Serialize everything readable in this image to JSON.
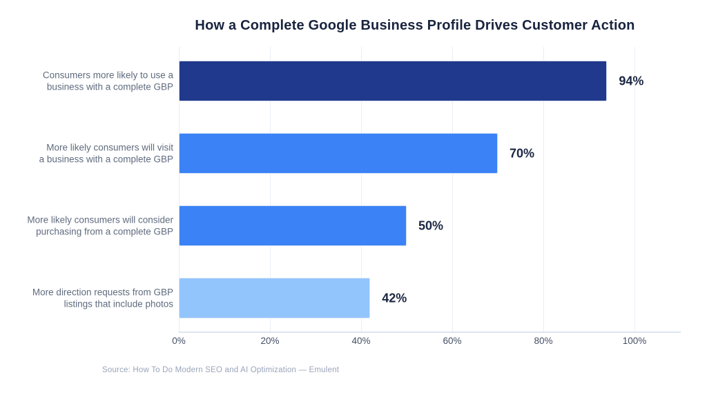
{
  "chart_data": {
    "type": "bar",
    "orientation": "horizontal",
    "title": "How a Complete Google Business Profile Drives Customer Action",
    "categories": [
      "Consumers more likely to use a\nbusiness with a complete GBP",
      "More likely consumers will visit\na business with a complete GBP",
      "More likely consumers will consider\npurchasing from a complete GBP",
      "More direction requests from GBP\nlistings that include photos"
    ],
    "values": [
      94,
      70,
      50,
      42
    ],
    "value_labels": [
      "94%",
      "70%",
      "50%",
      "42%"
    ],
    "bar_colors": [
      "#20398c",
      "#3b82f6",
      "#3b82f6",
      "#93c5fd"
    ],
    "xlabel": "",
    "ylabel": "",
    "xlim": [
      0,
      110
    ],
    "x_tick_values": [
      0,
      20,
      40,
      60,
      80,
      100
    ],
    "x_tick_labels": [
      "0%",
      "20%",
      "40%",
      "60%",
      "80%",
      "100%"
    ],
    "grid": "vertical",
    "legend": "none",
    "source": "Source: How To Do Modern SEO and AI Optimization — Emulent"
  },
  "colors": {
    "background": "#ffffff",
    "title": "#18233e",
    "category_label": "#5f6b7e",
    "value_label": "#1b2642",
    "tick_label": "#434f63",
    "gridline": "#e9edf5",
    "axis_line": "#dde4ef",
    "source": "#9aa4b8"
  }
}
